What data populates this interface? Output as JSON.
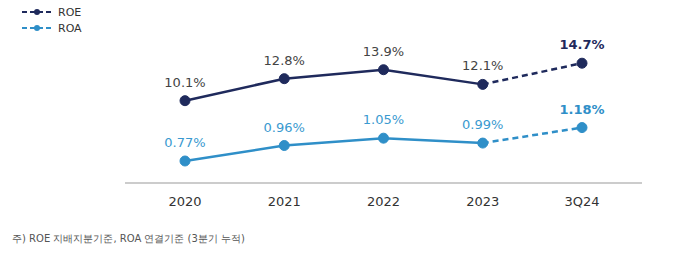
{
  "chart_data": {
    "type": "line",
    "categories": [
      "2020",
      "2021",
      "2022",
      "2023",
      "3Q24"
    ],
    "series": [
      {
        "name": "ROE",
        "color": "#1f2a5c",
        "values": [
          10.1,
          12.8,
          13.9,
          12.1,
          14.7
        ],
        "value_labels": [
          "10.1%",
          "12.8%",
          "13.9%",
          "12.1%",
          "14.7%"
        ]
      },
      {
        "name": "ROA",
        "color": "#2f8fc8",
        "values": [
          0.77,
          0.96,
          1.05,
          0.99,
          1.18
        ],
        "value_labels": [
          "0.77%",
          "0.96%",
          "1.05%",
          "0.99%",
          "1.18%"
        ],
        "axis": "y2"
      }
    ],
    "ylim": [
      0,
      20
    ],
    "yticks": [
      0,
      5,
      10,
      15,
      20
    ],
    "y2lim": [
      0.5,
      2.5
    ],
    "y2ticks": [
      0.5,
      1,
      1.5,
      2,
      2.5
    ],
    "grid": false,
    "legend": "upper left",
    "data_labels": true,
    "tick_labels": "x",
    "note": "주) ROE 지배지분기준, ROA 연결기준 (3분기 누적)"
  }
}
